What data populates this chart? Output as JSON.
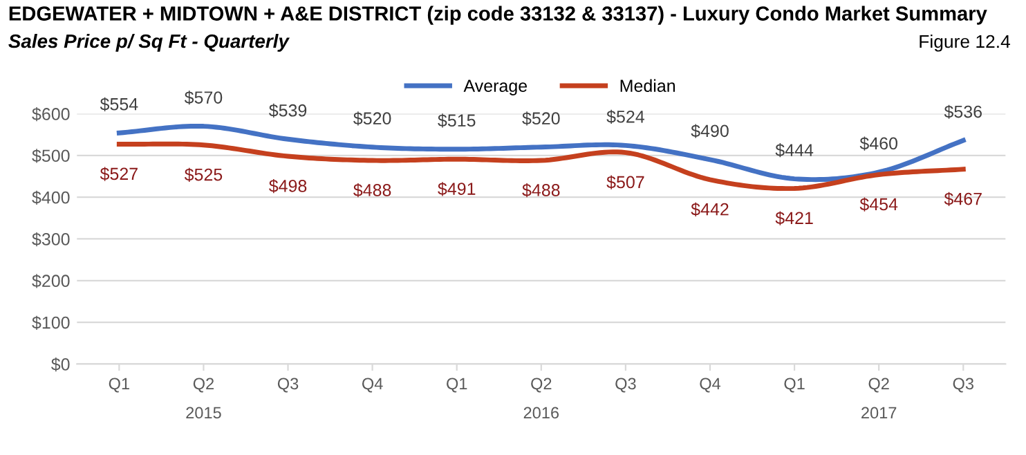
{
  "chart_data": {
    "type": "line",
    "title": "EDGEWATER + MIDTOWN + A&E DISTRICT (zip code 33132 & 33137) - Luxury Condo Market Summary",
    "subtitle": "Sales Price p/ Sq Ft - Quarterly",
    "annotations": [
      "Figure 12.4",
      "2015",
      "2016",
      "2017"
    ],
    "categories": [
      "Q1",
      "Q2",
      "Q3",
      "Q4",
      "Q1",
      "Q2",
      "Q3",
      "Q4",
      "Q1",
      "Q2",
      "Q3"
    ],
    "series": [
      {
        "name": "Average",
        "color": "#4472c4",
        "values": [
          554,
          570,
          539,
          520,
          515,
          520,
          524,
          490,
          444,
          460,
          536
        ],
        "value_labels": [
          "$554",
          "$570",
          "$539",
          "$520",
          "$515",
          "$520",
          "$524",
          "$490",
          "$444",
          "$460",
          "$536"
        ]
      },
      {
        "name": "Median",
        "color": "#c5401e",
        "values": [
          527,
          525,
          498,
          488,
          491,
          488,
          507,
          442,
          421,
          454,
          467
        ],
        "value_labels": [
          "$527",
          "$525",
          "$498",
          "$488",
          "$491",
          "$488",
          "$507",
          "$442",
          "$421",
          "$454",
          "$467"
        ]
      }
    ],
    "ylim": [
      0,
      600
    ],
    "yticks": [
      {
        "value": 0,
        "label": "$0"
      },
      {
        "value": 100,
        "label": "$100"
      },
      {
        "value": 200,
        "label": "$200"
      },
      {
        "value": 300,
        "label": "$300"
      },
      {
        "value": 400,
        "label": "$400"
      },
      {
        "value": 500,
        "label": "$500"
      },
      {
        "value": 600,
        "label": "$600"
      }
    ],
    "grid": "y",
    "legend": "top",
    "marker": "none",
    "line_style": "solid"
  }
}
